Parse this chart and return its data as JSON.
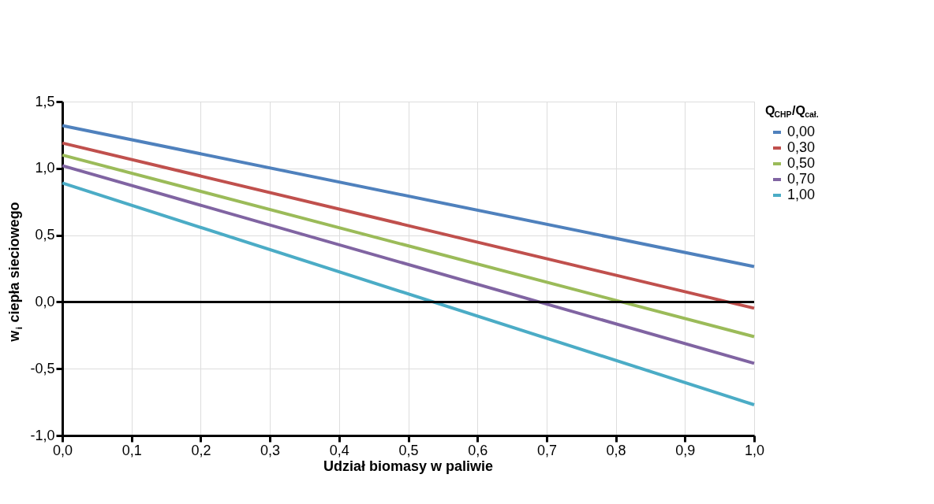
{
  "chart_data": {
    "type": "line",
    "xlabel": "Udział biomasy w paliwie",
    "ylabel": "w$_{i}$ ciepła sieciowego",
    "legend_title": "Q$_{CHP}$/Q$_{cał.}$",
    "x": [
      0,
      1
    ],
    "series": [
      {
        "name": "0,00",
        "color": "#4f81bd",
        "values": [
          1.32,
          0.265
        ]
      },
      {
        "name": "0,30",
        "color": "#c0504d",
        "values": [
          1.19,
          -0.047
        ]
      },
      {
        "name": "0,50",
        "color": "#9bbb59",
        "values": [
          1.1,
          -0.26
        ]
      },
      {
        "name": "0,70",
        "color": "#8064a2",
        "values": [
          1.02,
          -0.46
        ]
      },
      {
        "name": "1,00",
        "color": "#4bacc6",
        "values": [
          0.89,
          -0.77
        ]
      }
    ],
    "xlim": [
      0,
      1
    ],
    "xticks": [
      {
        "value": 0,
        "label": "0,0"
      },
      {
        "value": 0.1,
        "label": "0,1"
      },
      {
        "value": 0.2,
        "label": "0,2"
      },
      {
        "value": 0.3,
        "label": "0,3"
      },
      {
        "value": 0.4,
        "label": "0,4"
      },
      {
        "value": 0.5,
        "label": "0,5"
      },
      {
        "value": 0.6,
        "label": "0,6"
      },
      {
        "value": 0.7,
        "label": "0,7"
      },
      {
        "value": 0.8,
        "label": "0,8"
      },
      {
        "value": 0.9,
        "label": "0,9"
      },
      {
        "value": 1,
        "label": "1,0"
      }
    ],
    "ylim": [
      -1,
      1.5
    ],
    "yticks": [
      {
        "value": -1,
        "label": "-1,0"
      },
      {
        "value": -0.5,
        "label": "-0,5"
      },
      {
        "value": 0,
        "label": "0,0"
      },
      {
        "value": 0.5,
        "label": "0,5"
      },
      {
        "value": 1,
        "label": "1,0"
      },
      {
        "value": 1.5,
        "label": "1,5"
      }
    ],
    "grid": true,
    "legend": "right",
    "marker": "none",
    "line_style": "solid"
  }
}
